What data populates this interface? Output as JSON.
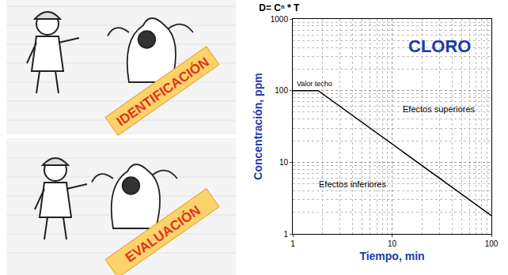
{
  "panels": [
    "IDENTIFICACIÓN",
    "EVALUACIÓN"
  ],
  "chart_data": {
    "type": "line",
    "title": "D= Cⁿ * T",
    "x": [
      1,
      1.8,
      100
    ],
    "values": [
      100,
      100,
      1.8
    ],
    "color": "#000000",
    "xlabel": "Tiempo, min",
    "ylabel": "Concentración, ppm",
    "xlim": [
      1,
      100
    ],
    "ylim": [
      1,
      1000
    ],
    "xticks": [
      1,
      10,
      100
    ],
    "yticks": [
      1,
      10,
      100,
      1000
    ],
    "log": true,
    "grid": true,
    "annotations": [
      {
        "text": "Valor techo",
        "x": 1.05,
        "y": 125
      },
      {
        "text": "CLORO",
        "x": 30,
        "y": 420
      },
      {
        "text": "Efectos superiores",
        "x": 30,
        "y": 55
      },
      {
        "text": "Efectos inferiores",
        "x": 4,
        "y": 5
      }
    ]
  }
}
